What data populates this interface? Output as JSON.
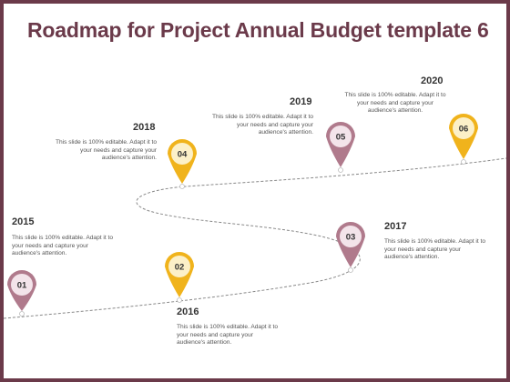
{
  "title": "Roadmap for Project Annual Budget template 6",
  "colors": {
    "frame": "#6b3a4a",
    "plum_pin": "#b07a8c",
    "gold_pin": "#f0b31c",
    "pin_inner_plum": "#f3e4ea",
    "pin_inner_gold": "#fcf0c8"
  },
  "milestones": [
    {
      "number": "01",
      "year": "2015",
      "text": "This slide is 100% editable. Adapt it to your needs and capture your audience's attention."
    },
    {
      "number": "02",
      "year": "2016",
      "text": "This slide is 100% editable. Adapt it to your needs and capture your audience's attention."
    },
    {
      "number": "03",
      "year": "2017",
      "text": "This slide is 100% editable. Adapt it to your needs and capture your audience's attention."
    },
    {
      "number": "04",
      "year": "2018",
      "text": "This slide is 100% editable. Adapt it to your needs and capture your audience's attention."
    },
    {
      "number": "05",
      "year": "2019",
      "text": "This slide is 100% editable. Adapt it to your needs and capture your audience's attention."
    },
    {
      "number": "06",
      "year": "2020",
      "text": "This slide is 100% editable. Adapt it to your needs and capture your audience's attention."
    }
  ]
}
